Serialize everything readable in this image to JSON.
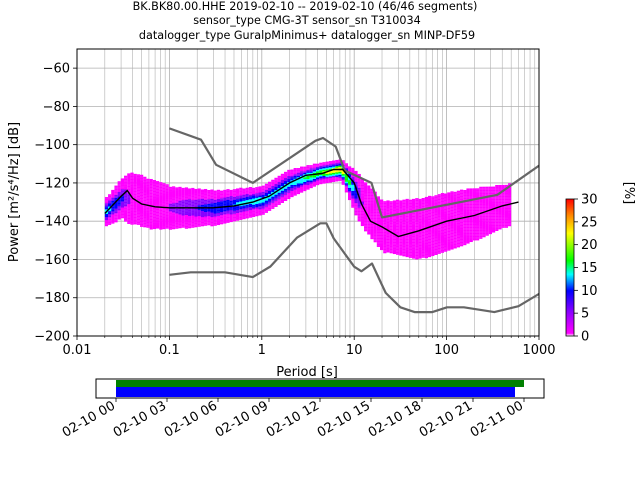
{
  "title_lines": [
    "BK.BK80.00.HHE   2019-02-10 -- 2019-02-10  (46/46 segments)",
    "sensor_type CMG-3T sensor_sn T310034",
    "datalogger_type GuralpMinimus+ datalogger_sn MINP-DF59"
  ],
  "colorbar": {
    "label": "[%]",
    "ticks": [
      "0",
      "5",
      "10",
      "15",
      "20",
      "25",
      "30"
    ],
    "colormap": [
      "#ffffff",
      "#ff00ff",
      "#8800ff",
      "#0000ff",
      "#00ffff",
      "#00ff00",
      "#ffff00",
      "#ff8800",
      "#ff0000"
    ]
  },
  "time_axis": {
    "ticks": [
      "02-10 00",
      "02-10 03",
      "02-10 06",
      "02-10 09",
      "02-10 12",
      "02-10 15",
      "02-10 18",
      "02-10 21",
      "02-11 00"
    ],
    "data_bar_color": "#008000",
    "psd_bar_color": "#0000ff"
  },
  "chart_data": {
    "type": "heatmap",
    "xlabel": "Period [s]",
    "ylabel": "Power [m²/s⁴/Hz] [dB]",
    "xscale": "log",
    "xlim": [
      0.01,
      1000
    ],
    "ylim": [
      -200,
      -50
    ],
    "xticks": [
      "0.01",
      "0.1",
      "1",
      "10",
      "100",
      "1000"
    ],
    "yticks": [
      "−200",
      "−180",
      "−160",
      "−140",
      "−120",
      "−100",
      "−80",
      "−60"
    ],
    "grid": true,
    "noise_models": {
      "color": "#666666",
      "high": [
        [
          0.1,
          -91.5
        ],
        [
          0.22,
          -97.4
        ],
        [
          0.32,
          -110.5
        ],
        [
          0.8,
          -120
        ],
        [
          3.8,
          -98
        ],
        [
          4.6,
          -96.5
        ],
        [
          6.3,
          -101
        ],
        [
          7.9,
          -113.5
        ],
        [
          15.4,
          -120
        ],
        [
          20,
          -138
        ],
        [
          354.8,
          -126.2
        ],
        [
          1000,
          -111
        ]
      ],
      "low": [
        [
          0.1,
          -168
        ],
        [
          0.17,
          -166.7
        ],
        [
          0.4,
          -166.7
        ],
        [
          0.8,
          -169.2
        ],
        [
          1.24,
          -163.7
        ],
        [
          2.4,
          -148.6
        ],
        [
          4.3,
          -141.1
        ],
        [
          5,
          -141.1
        ],
        [
          6,
          -149
        ],
        [
          10,
          -163.8
        ],
        [
          12,
          -166.2
        ],
        [
          15.6,
          -162.1
        ],
        [
          21.9,
          -177.5
        ],
        [
          31.6,
          -185
        ],
        [
          45,
          -187.5
        ],
        [
          70,
          -187.5
        ],
        [
          101,
          -185
        ],
        [
          154,
          -185
        ],
        [
          328,
          -187.5
        ],
        [
          600,
          -184.4
        ],
        [
          1000,
          -178
        ]
      ]
    },
    "median_line": {
      "color": "#000000",
      "points": [
        [
          0.02,
          -136
        ],
        [
          0.025,
          -131
        ],
        [
          0.03,
          -127
        ],
        [
          0.035,
          -124
        ],
        [
          0.04,
          -128
        ],
        [
          0.05,
          -131
        ],
        [
          0.07,
          -132.5
        ],
        [
          0.1,
          -133
        ],
        [
          0.2,
          -133
        ],
        [
          0.3,
          -133
        ],
        [
          0.5,
          -132
        ],
        [
          0.8,
          -130
        ],
        [
          1.2,
          -127
        ],
        [
          2,
          -120
        ],
        [
          3,
          -116
        ],
        [
          4.5,
          -115
        ],
        [
          6,
          -113
        ],
        [
          7.5,
          -113
        ],
        [
          10,
          -120
        ],
        [
          12,
          -131
        ],
        [
          15,
          -140
        ],
        [
          20,
          -143
        ],
        [
          30,
          -148
        ],
        [
          50,
          -145
        ],
        [
          100,
          -140
        ],
        [
          200,
          -137
        ],
        [
          400,
          -132
        ],
        [
          600,
          -130
        ]
      ]
    },
    "ppsd_density": [
      {
        "period": 0.02,
        "center": -135,
        "spread": 4,
        "percent": 15
      },
      {
        "period": 0.03,
        "center": -128,
        "spread": 6,
        "percent": 10
      },
      {
        "period": 0.04,
        "center": -128,
        "spread": 10,
        "percent": 3
      },
      {
        "period": 0.06,
        "center": -131,
        "spread": 9,
        "percent": 4
      },
      {
        "period": 0.1,
        "center": -133,
        "spread": 7,
        "percent": 6
      },
      {
        "period": 0.3,
        "center": -133,
        "spread": 5,
        "percent": 12
      },
      {
        "period": 1,
        "center": -129,
        "spread": 4,
        "percent": 15
      },
      {
        "period": 2,
        "center": -120,
        "spread": 4,
        "percent": 14
      },
      {
        "period": 4,
        "center": -115,
        "spread": 3,
        "percent": 20
      },
      {
        "period": 7,
        "center": -113,
        "spread": 3,
        "percent": 25
      },
      {
        "period": 12,
        "center": -131,
        "spread": 8,
        "percent": 5
      },
      {
        "period": 20,
        "center": -143,
        "spread": 10,
        "percent": 3
      },
      {
        "period": 50,
        "center": -144,
        "spread": 12,
        "percent": 3
      },
      {
        "period": 150,
        "center": -138,
        "spread": 11,
        "percent": 3
      },
      {
        "period": 500,
        "center": -131,
        "spread": 8,
        "percent": 3
      }
    ],
    "colorbar_range": [
      0,
      30
    ]
  }
}
